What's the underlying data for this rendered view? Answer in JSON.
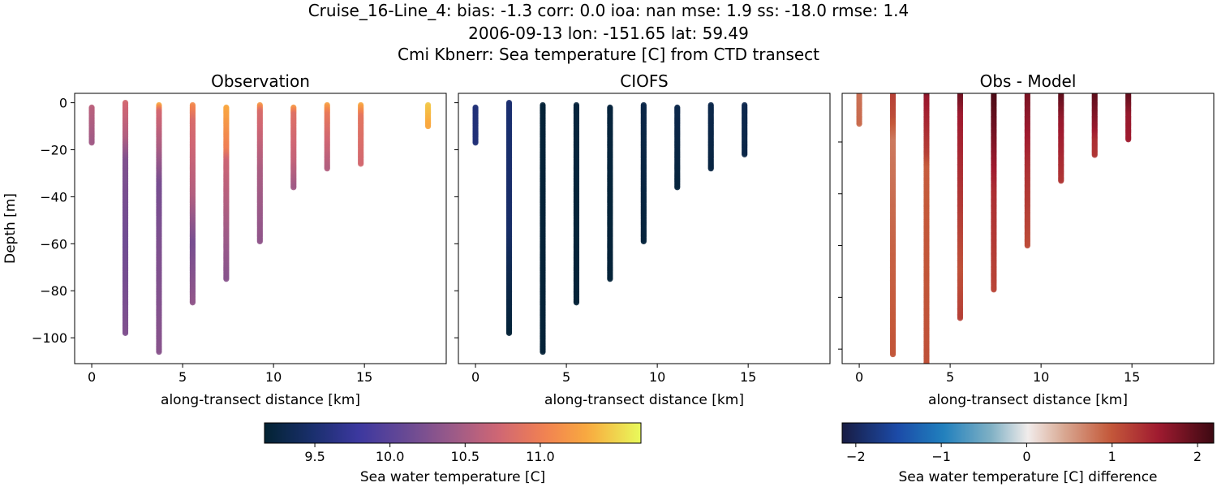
{
  "title_lines": [
    "Cruise_16-Line_4: bias: -1.3  corr: 0.0  ioa: nan  mse: 1.9  ss: -18.0  rmse: 1.4",
    "2006-09-13 lon: -151.65 lat: 59.49",
    "Cmi Kbnerr: Sea temperature [C] from CTD transect"
  ],
  "chart_data": [
    {
      "type": "scatter",
      "title": "Observation",
      "xlabel": "along-transect distance [km]",
      "ylabel": "Depth [m]",
      "xlim": [
        -0.94,
        19.5
      ],
      "ylim": [
        -111,
        4
      ],
      "xticks": [
        0,
        5,
        10,
        15
      ],
      "yticks": [
        0,
        -20,
        -40,
        -60,
        -80,
        -100
      ],
      "show_ytick_labels": true,
      "colormap": "thermal",
      "casts": [
        {
          "x": 0,
          "profile": [
            [
              -2,
              10.6
            ],
            [
              -17,
              10.45
            ]
          ]
        },
        {
          "x": 1.85,
          "profile": [
            [
              0,
              10.75
            ],
            [
              -15,
              10.55
            ],
            [
              -25,
              10.25
            ],
            [
              -60,
              10.15
            ],
            [
              -98,
              10.25
            ]
          ]
        },
        {
          "x": 3.7,
          "profile": [
            [
              -1,
              11.3
            ],
            [
              -4,
              10.75
            ],
            [
              -20,
              10.5
            ],
            [
              -35,
              10.2
            ],
            [
              -106,
              10.3
            ]
          ]
        },
        {
          "x": 5.55,
          "profile": [
            [
              -1,
              11.1
            ],
            [
              -8,
              10.8
            ],
            [
              -40,
              10.55
            ],
            [
              -60,
              10.2
            ],
            [
              -85,
              10.35
            ]
          ]
        },
        {
          "x": 7.4,
          "profile": [
            [
              -2,
              11.3
            ],
            [
              -20,
              11.0
            ],
            [
              -25,
              10.7
            ],
            [
              -55,
              10.45
            ],
            [
              -75,
              10.3
            ]
          ]
        },
        {
          "x": 9.25,
          "profile": [
            [
              -1,
              11.2
            ],
            [
              -4,
              10.8
            ],
            [
              -30,
              10.5
            ],
            [
              -59,
              10.35
            ]
          ]
        },
        {
          "x": 11.1,
          "profile": [
            [
              -2,
              11.2
            ],
            [
              -5,
              10.85
            ],
            [
              -25,
              10.65
            ],
            [
              -36,
              10.45
            ]
          ]
        },
        {
          "x": 12.95,
          "profile": [
            [
              -1,
              11.25
            ],
            [
              -5,
              10.95
            ],
            [
              -15,
              10.75
            ],
            [
              -28,
              10.55
            ]
          ]
        },
        {
          "x": 14.8,
          "profile": [
            [
              -1,
              11.3
            ],
            [
              -6,
              10.9
            ],
            [
              -26,
              10.75
            ]
          ]
        },
        {
          "x": 18.5,
          "profile": [
            [
              -1,
              11.45
            ],
            [
              -10,
              11.3
            ]
          ]
        }
      ]
    },
    {
      "type": "scatter",
      "title": "CIOFS",
      "xlabel": "along-transect distance [km]",
      "xlim": [
        -0.94,
        19.5
      ],
      "ylim": [
        -111,
        4
      ],
      "xticks": [
        0,
        5,
        10,
        15
      ],
      "yticks": [
        0,
        -20,
        -40,
        -60,
        -80,
        -100
      ],
      "show_ytick_labels": false,
      "colormap": "thermal",
      "casts": [
        {
          "x": 0,
          "profile": [
            [
              -2,
              9.55
            ],
            [
              -17,
              9.55
            ]
          ]
        },
        {
          "x": 1.85,
          "profile": [
            [
              0,
              9.5
            ],
            [
              -55,
              9.45
            ],
            [
              -75,
              9.3
            ],
            [
              -98,
              9.2
            ]
          ]
        },
        {
          "x": 3.7,
          "profile": [
            [
              -1,
              9.2
            ],
            [
              -106,
              9.2
            ]
          ]
        },
        {
          "x": 5.55,
          "profile": [
            [
              -1,
              9.22
            ],
            [
              -85,
              9.2
            ]
          ]
        },
        {
          "x": 7.4,
          "profile": [
            [
              -2,
              9.22
            ],
            [
              -75,
              9.2
            ]
          ]
        },
        {
          "x": 9.25,
          "profile": [
            [
              -1,
              9.28
            ],
            [
              -59,
              9.22
            ]
          ]
        },
        {
          "x": 11.1,
          "profile": [
            [
              -2,
              9.3
            ],
            [
              -36,
              9.22
            ]
          ]
        },
        {
          "x": 12.95,
          "profile": [
            [
              -1,
              9.3
            ],
            [
              -28,
              9.25
            ]
          ]
        },
        {
          "x": 14.8,
          "profile": [
            [
              -1,
              9.32
            ],
            [
              -22,
              9.28
            ]
          ]
        }
      ]
    },
    {
      "type": "scatter",
      "title": "Obs - Model",
      "xlabel": "along-transect distance [km]",
      "xlim": [
        -0.94,
        19.5
      ],
      "ylim": [
        -105.6,
        -1.2
      ],
      "xticks": [
        0,
        5,
        10,
        15
      ],
      "yticks": [
        -20,
        -40,
        -60,
        -80,
        -100
      ],
      "show_ytick_labels": false,
      "colormap": "balance",
      "casts": [
        {
          "x": 0,
          "profile": [
            [
              -1,
              0.8
            ],
            [
              -13,
              0.85
            ]
          ]
        },
        {
          "x": 1.85,
          "profile": [
            [
              -1,
              1.2
            ],
            [
              -10,
              1.1
            ],
            [
              -20,
              0.75
            ],
            [
              -60,
              0.9
            ],
            [
              -102,
              1.0
            ]
          ]
        },
        {
          "x": 3.7,
          "profile": [
            [
              -1,
              2.0
            ],
            [
              -3,
              1.6
            ],
            [
              -25,
              1.2
            ],
            [
              -30,
              0.95
            ],
            [
              -106,
              1.05
            ]
          ]
        },
        {
          "x": 5.55,
          "profile": [
            [
              -1,
              1.9
            ],
            [
              -10,
              1.55
            ],
            [
              -40,
              1.3
            ],
            [
              -70,
              1.05
            ],
            [
              -88,
              1.2
            ]
          ]
        },
        {
          "x": 7.4,
          "profile": [
            [
              -1,
              2.1
            ],
            [
              -18,
              1.8
            ],
            [
              -40,
              1.35
            ],
            [
              -77,
              1.15
            ]
          ]
        },
        {
          "x": 9.25,
          "profile": [
            [
              -1,
              1.8
            ],
            [
              -30,
              1.35
            ],
            [
              -60,
              1.1
            ]
          ]
        },
        {
          "x": 11.1,
          "profile": [
            [
              -1,
              2.0
            ],
            [
              -12,
              1.6
            ],
            [
              -35,
              1.3
            ]
          ]
        },
        {
          "x": 12.95,
          "profile": [
            [
              -1,
              2.0
            ],
            [
              -15,
              1.6
            ],
            [
              -20,
              1.35
            ],
            [
              -25,
              1.3
            ]
          ]
        },
        {
          "x": 14.8,
          "profile": [
            [
              -1,
              2.0
            ],
            [
              -10,
              1.6
            ],
            [
              -19,
              1.55
            ]
          ]
        }
      ]
    }
  ],
  "colorbars": [
    {
      "label": "Sea water temperature [C]",
      "colormap": "thermal",
      "range": [
        9.165,
        11.67
      ],
      "ticks": [
        "9.5",
        "10.0",
        "10.5",
        "11.0"
      ]
    },
    {
      "label": "Sea water temperature [C] difference",
      "colormap": "balance",
      "range": [
        -2.16,
        2.19
      ],
      "ticks": [
        "−2",
        "−1",
        "0",
        "1",
        "2"
      ]
    }
  ]
}
